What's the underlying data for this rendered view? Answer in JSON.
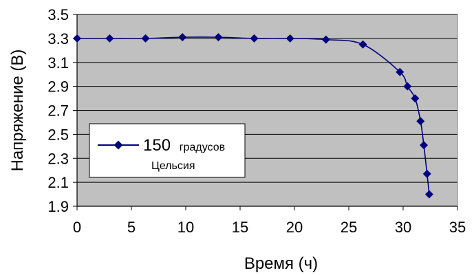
{
  "chart_data": {
    "type": "line",
    "title": "",
    "xlabel": "Время (ч)",
    "ylabel": "Напряжение (В)",
    "xlim": [
      0,
      35
    ],
    "ylim": [
      1.9,
      3.5
    ],
    "x_ticks": [
      0,
      5,
      10,
      15,
      20,
      25,
      30,
      35
    ],
    "y_ticks": [
      3.5,
      3.3,
      3.1,
      2.9,
      2.7,
      2.5,
      2.3,
      2.1,
      1.9
    ],
    "grid": "horizontal",
    "plot_background": "#c0c0c0",
    "legend_position": "left-lower",
    "series": [
      {
        "name_main": "150",
        "name_sub1": "градусов",
        "name_sub2": "Цельсия",
        "color": "#000080",
        "marker": "diamond",
        "points": [
          {
            "x": 0,
            "y": 3.3
          },
          {
            "x": 3,
            "y": 3.3
          },
          {
            "x": 6.3,
            "y": 3.3
          },
          {
            "x": 9.7,
            "y": 3.31
          },
          {
            "x": 13,
            "y": 3.31
          },
          {
            "x": 16.3,
            "y": 3.3
          },
          {
            "x": 19.6,
            "y": 3.3
          },
          {
            "x": 22.9,
            "y": 3.29
          },
          {
            "x": 26.3,
            "y": 3.25
          },
          {
            "x": 29.7,
            "y": 3.02
          },
          {
            "x": 30.4,
            "y": 2.9
          },
          {
            "x": 31.1,
            "y": 2.8
          },
          {
            "x": 31.6,
            "y": 2.61
          },
          {
            "x": 31.9,
            "y": 2.41
          },
          {
            "x": 32.2,
            "y": 2.17
          },
          {
            "x": 32.4,
            "y": 2.0
          }
        ]
      }
    ]
  }
}
